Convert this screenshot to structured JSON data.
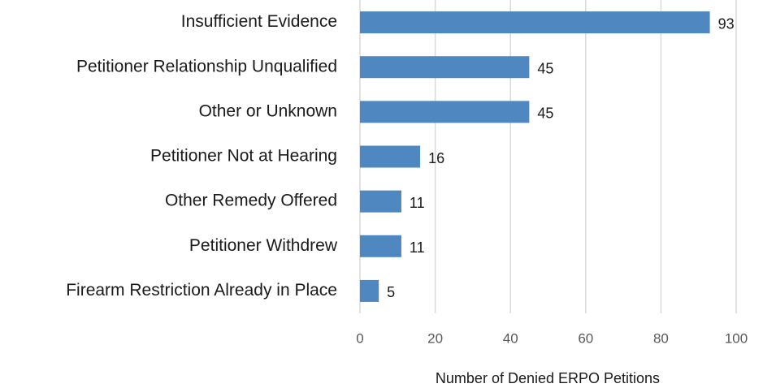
{
  "chart_data": {
    "type": "barh",
    "categories": [
      "Insufficient Evidence",
      "Petitioner Relationship Unqualified",
      "Other or Unknown",
      "Petitioner Not at Hearing",
      "Other Remedy Offered",
      "Petitioner Withdrew",
      "Firearm Restriction Already in Place"
    ],
    "values": [
      93,
      45,
      45,
      16,
      11,
      11,
      5
    ],
    "color": "#4f87c1",
    "xlim": [
      0,
      100
    ],
    "xticks": [
      0,
      20,
      40,
      60,
      80,
      100
    ],
    "xlabel": "Number of Denied ERPO Petitions",
    "grid": true
  }
}
